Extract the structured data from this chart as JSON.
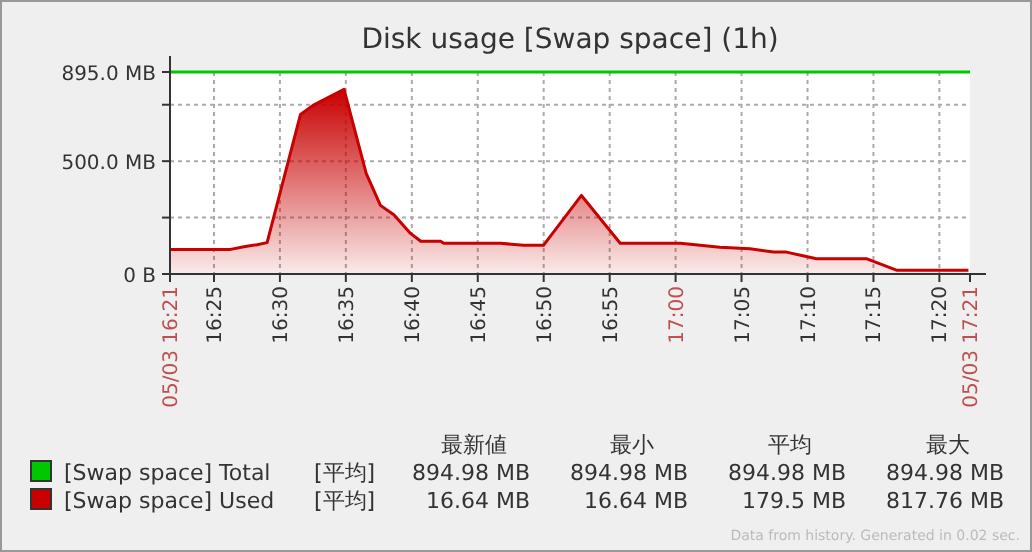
{
  "chart_data": {
    "type": "area",
    "title": "Disk usage [Swap space] (1h)",
    "x": [
      16.3611,
      16.4377,
      16.4545,
      16.4712,
      16.4838,
      16.526,
      16.543,
      16.581,
      16.609,
      16.627,
      16.644,
      16.665,
      16.678,
      16.703,
      16.707,
      16.779,
      16.808,
      16.833,
      16.881,
      16.93,
      17.006,
      17.056,
      17.094,
      17.124,
      17.14,
      17.178,
      17.241,
      17.279,
      17.37
    ],
    "series": [
      {
        "name": "[Swap space] Total",
        "color": "#00c800",
        "type": "line",
        "x": [
          16.3611,
          17.372
        ],
        "values": [
          894.98,
          894.98
        ]
      },
      {
        "name": "[Swap space] Used",
        "color": "#c80000",
        "values": [
          109,
          109,
          121,
          130,
          139,
          707,
          750,
          818,
          446,
          304,
          263,
          180,
          145,
          145,
          136,
          136,
          127,
          127,
          348,
          136,
          136,
          118,
          112,
          97,
          97,
          68,
          68,
          17,
          17
        ]
      }
    ],
    "xlim": [
      16.3611,
      17.372
    ],
    "xticks": [
      {
        "value": 16.3611,
        "label": "05/03 16:21"
      },
      {
        "value": 16.4167,
        "label": "16:25"
      },
      {
        "value": 16.5,
        "label": "16:30"
      },
      {
        "value": 16.5833,
        "label": "16:35"
      },
      {
        "value": 16.6667,
        "label": "16:40"
      },
      {
        "value": 16.75,
        "label": "16:45"
      },
      {
        "value": 16.8333,
        "label": "16:50"
      },
      {
        "value": 16.9167,
        "label": "16:55"
      },
      {
        "value": 17.0,
        "label": "17:00"
      },
      {
        "value": 17.0833,
        "label": "17:05"
      },
      {
        "value": 17.1667,
        "label": "17:10"
      },
      {
        "value": 17.25,
        "label": "17:15"
      },
      {
        "value": 17.3333,
        "label": "17:20"
      },
      {
        "value": 17.372,
        "label": "05/03 17:21"
      }
    ],
    "ylim": [
      0,
      895
    ],
    "yticks": [
      {
        "value": 0,
        "label": "0 B"
      },
      {
        "value": 250,
        "label": null
      },
      {
        "value": 500,
        "label": "500.0 MB"
      },
      {
        "value": 750,
        "label": null
      },
      {
        "value": 895,
        "label": "895.0 MB"
      }
    ],
    "grid": true,
    "legend": "bottom",
    "annotations": [
      "最新値",
      "最小",
      "平均",
      "最大",
      "[平均]",
      "894.98 MB",
      "894.98 MB",
      "894.98 MB",
      "894.98 MB",
      "[平均]",
      "16.64 MB",
      "16.64 MB",
      "179.5 MB",
      "817.76 MB",
      "Data from history. Generated in 0.02 sec."
    ]
  }
}
